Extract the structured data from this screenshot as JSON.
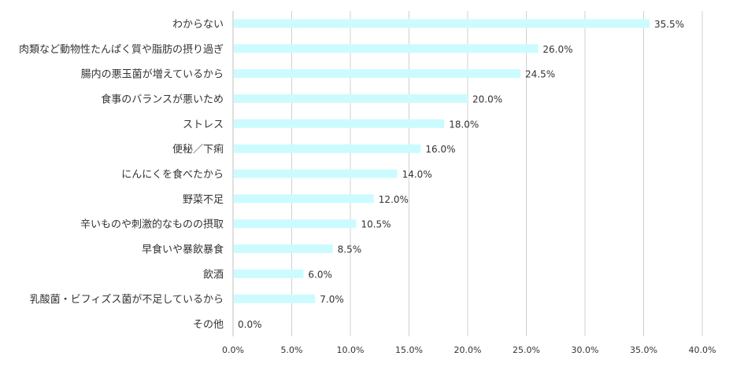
{
  "chart_data": {
    "type": "bar",
    "orientation": "horizontal",
    "categories": [
      "わからない",
      "肉類など動物性たんぱく質や脂肪の摂り過ぎ",
      "腸内の悪玉菌が増えているから",
      "食事のバランスが悪いため",
      "ストレス",
      "便秘／下痢",
      "にんにくを食べたから",
      "野菜不足",
      "辛いものや刺激的なものの摂取",
      "早食いや暴飲暴食",
      "飲酒",
      "乳酸菌・ビフィズス菌が不足しているから",
      "その他"
    ],
    "values": [
      35.5,
      26.0,
      24.5,
      20.0,
      18.0,
      16.0,
      14.0,
      12.0,
      10.5,
      8.5,
      6.0,
      7.0,
      0.0
    ],
    "data_labels": [
      "35.5%",
      "26.0%",
      "24.5%",
      "20.0%",
      "18.0%",
      "16.0%",
      "14.0%",
      "12.0%",
      "10.5%",
      "8.5%",
      "6.0%",
      "7.0%",
      "0.0%"
    ],
    "xlim": [
      0,
      40
    ],
    "x_ticks": [
      "0.0%",
      "5.0%",
      "10.0%",
      "15.0%",
      "20.0%",
      "25.0%",
      "30.0%",
      "35.0%",
      "40.0%"
    ],
    "grid": "vertical",
    "legend": "none",
    "bar_color": "#ccfbff",
    "grid_color": "#d0d0d0"
  }
}
